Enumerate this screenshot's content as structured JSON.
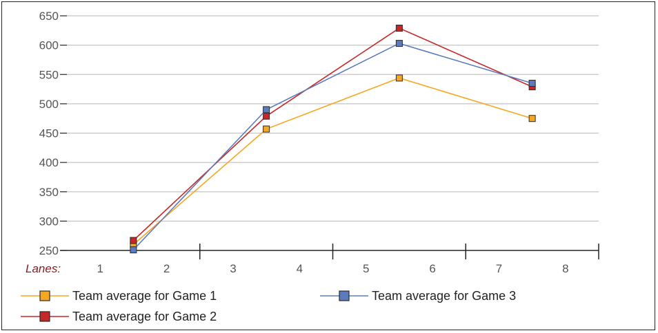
{
  "chart_data": {
    "type": "line",
    "x_title": "Lanes:",
    "x_ticks": [
      "1",
      "2",
      "3",
      "4",
      "5",
      "6",
      "7",
      "8"
    ],
    "categories": [
      "1-2",
      "3-4",
      "5-6",
      "7-8"
    ],
    "ylim": [
      250,
      650
    ],
    "y_ticks": [
      250,
      300,
      350,
      400,
      450,
      500,
      550,
      600,
      650
    ],
    "grid": true,
    "legend_position": "bottom",
    "series": [
      {
        "name": "Team average for Game 1",
        "values": [
          260,
          457,
          544,
          475
        ],
        "color": "#f5a623"
      },
      {
        "name": "Team average for Game 2",
        "values": [
          267,
          479,
          629,
          529
        ],
        "color": "#c62828"
      },
      {
        "name": "Team average for Game 3",
        "values": [
          251,
          490,
          603,
          535
        ],
        "color": "#5b7bbd"
      }
    ]
  },
  "colors": {
    "grid": "#c4c4c4",
    "axis": "#222222",
    "marker_stroke": "#2a2a2a"
  }
}
